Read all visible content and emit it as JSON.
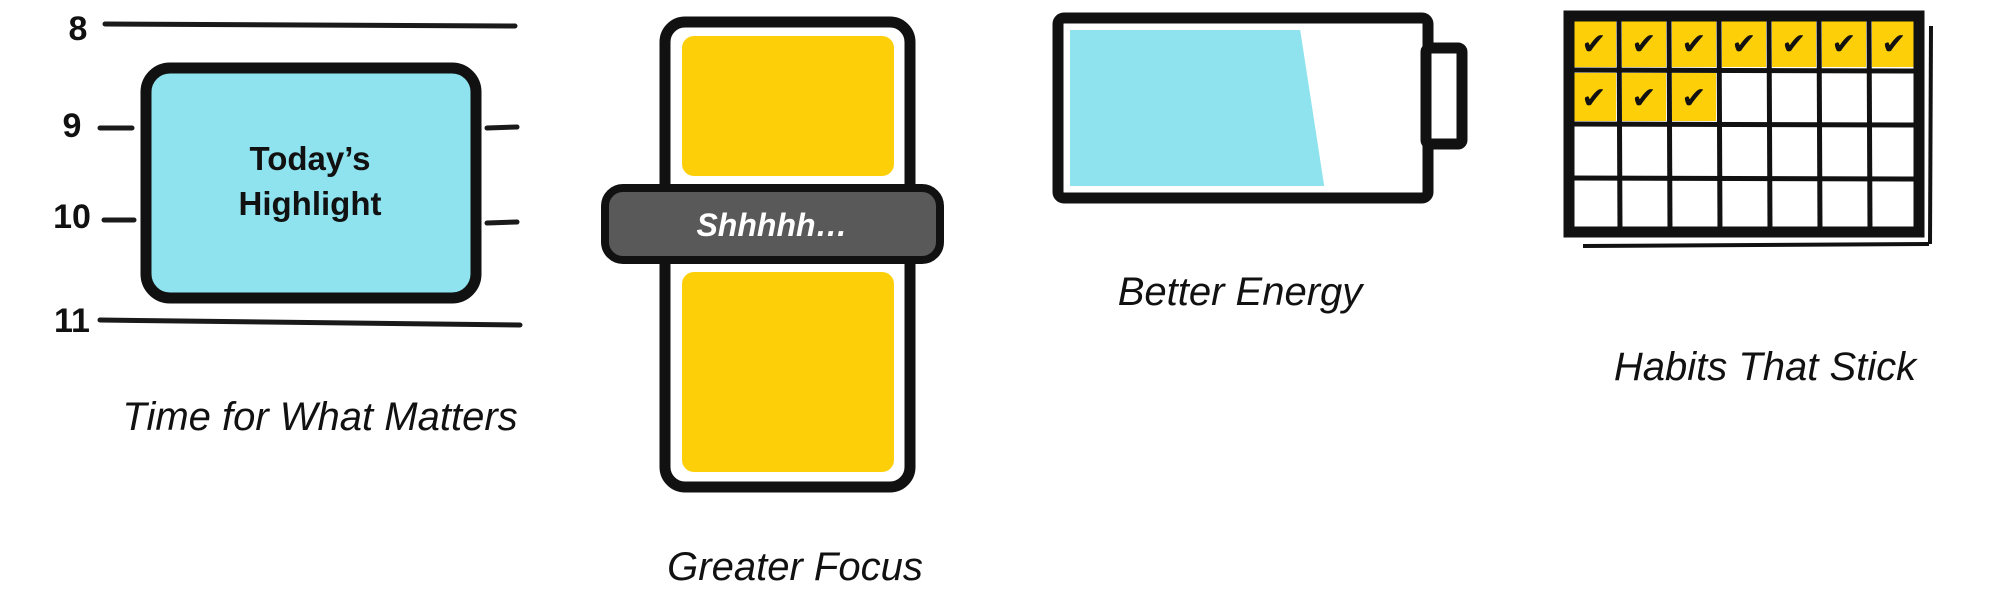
{
  "calendar": {
    "hours": [
      "8",
      "9",
      "10",
      "11"
    ],
    "highlight_line1": "Today’s",
    "highlight_line2": "Highlight",
    "caption": "Time for What Matters",
    "highlight_color": "#8fe3ef"
  },
  "focus": {
    "band_text": "Shhhhh…",
    "caption": "Greater Focus",
    "fill_color": "#fccf08",
    "band_color": "#595959"
  },
  "energy": {
    "caption": "Better Energy",
    "charge_fraction": 0.7,
    "fill_color": "#8fe3ef"
  },
  "habits": {
    "caption": "Habits That Stick",
    "checked_count": 10,
    "check_mark": "✔",
    "fill_color": "#fccf08"
  }
}
